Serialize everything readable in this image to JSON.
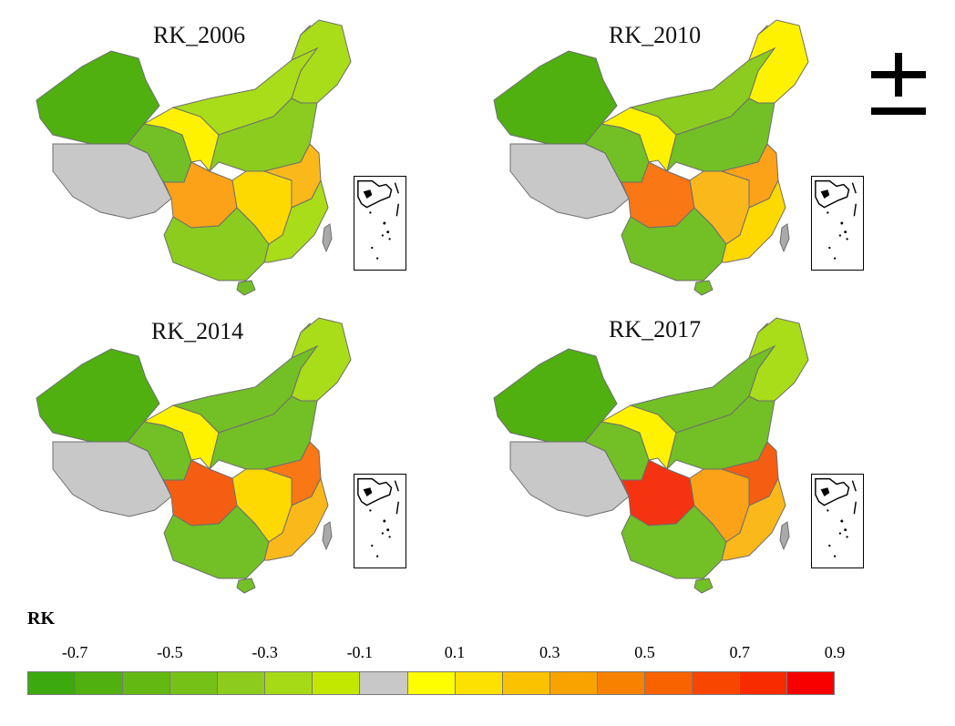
{
  "maps": [
    {
      "title": "RK_2006",
      "colors": {
        "west": "#4fb010",
        "plateau": "#c8c8c8",
        "qinghai": "#73bf26",
        "gansu": "#fef200",
        "innermongolia": "#a9dc19",
        "northeast": "#a9dc19",
        "north": "#8bcc1e",
        "sichuan": "#fba218",
        "south": "#8bcc1e",
        "central": "#fed801",
        "east": "#fbb81a",
        "southeast": "#a9dc19",
        "hainan": "#73bf26",
        "taiwan": "#a9a9a9"
      }
    },
    {
      "title": "RK_2010",
      "colors": {
        "west": "#4fb010",
        "plateau": "#c8c8c8",
        "qinghai": "#73bf26",
        "gansu": "#fef200",
        "innermongolia": "#8bcc1e",
        "northeast": "#fef200",
        "north": "#73bf26",
        "sichuan": "#f97714",
        "south": "#73bf26",
        "central": "#fbb81a",
        "east": "#fba218",
        "southeast": "#fed801",
        "hainan": "#73bf26",
        "taiwan": "#a9a9a9"
      }
    },
    {
      "title": "RK_2014",
      "colors": {
        "west": "#4fb010",
        "plateau": "#c8c8c8",
        "qinghai": "#73bf26",
        "gansu": "#fef200",
        "innermongolia": "#73bf26",
        "northeast": "#a9dc19",
        "north": "#73bf26",
        "sichuan": "#f55e12",
        "south": "#73bf26",
        "central": "#fed801",
        "east": "#f97714",
        "southeast": "#fbb81a",
        "hainan": "#73bf26",
        "taiwan": "#a9a9a9"
      }
    },
    {
      "title": "RK_2017",
      "colors": {
        "west": "#4fb010",
        "plateau": "#c8c8c8",
        "qinghai": "#73bf26",
        "gansu": "#fef200",
        "innermongolia": "#73bf26",
        "northeast": "#a9dc19",
        "north": "#73bf26",
        "sichuan": "#f53310",
        "south": "#73bf26",
        "central": "#fba218",
        "east": "#f55e12",
        "southeast": "#fbb81a",
        "hainan": "#73bf26",
        "taiwan": "#a9a9a9"
      }
    }
  ],
  "legend": {
    "title": "RK",
    "tick_labels": [
      "-0.7",
      "-0.5",
      "-0.3",
      "-0.1",
      "0.1",
      "0.3",
      "0.5",
      "0.7",
      "0.9"
    ],
    "colors": [
      "#3ca90f",
      "#4fb010",
      "#63b812",
      "#76c117",
      "#8dcc1c",
      "#a6da16",
      "#c3e800",
      "#c8c8c8",
      "#fefe00",
      "#fde100",
      "#fbc200",
      "#f9a300",
      "#f88200",
      "#f86300",
      "#f84500",
      "#f82b00",
      "#f80000"
    ]
  },
  "north_arrow": "north-arrow-icon"
}
